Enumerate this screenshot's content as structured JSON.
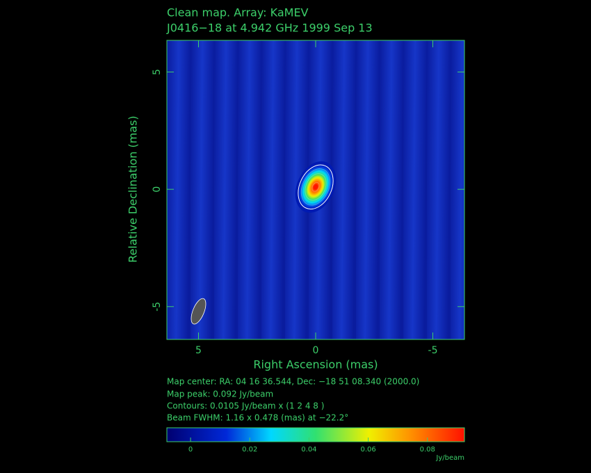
{
  "chart_data": {
    "type": "contour-map",
    "title": "Clean map.  Array: KaMEV",
    "subtitle": "J0416−18 at 4.942 GHz 1999 Sep 13",
    "x_label": "Right Ascension  (mas)",
    "y_label": "Relative Declination  (mas)",
    "xlim": [
      6.35,
      -6.35
    ],
    "ylim": [
      -6.4,
      6.35
    ],
    "xticks": [
      5,
      0,
      -5
    ],
    "yticks": [
      5,
      0,
      -5
    ],
    "source": {
      "x": 0,
      "y": 0.1,
      "peak": 0.092
    },
    "contour_base": 0.0105,
    "contour_multipliers": [
      1,
      2,
      4,
      8
    ],
    "beam": {
      "x": 5,
      "y": -5.2,
      "major": 1.16,
      "minor": 0.478,
      "pa": -22.2
    },
    "notes": [
      "Map center:  RA: 04 16 36.544,  Dec: −18 51 08.340 (2000.0)",
      "Map peak: 0.092 Jy/beam",
      "Contours: 0.0105 Jy/beam x (1 2 4 8 )",
      "Beam FWHM: 1.16 x 0.478 (mas) at −22.2°"
    ],
    "colorbar": {
      "clim": [
        -0.008,
        0.0925
      ],
      "ticks": [
        0,
        0.02,
        0.04,
        0.06,
        0.08
      ],
      "label": "Jy/beam"
    }
  }
}
